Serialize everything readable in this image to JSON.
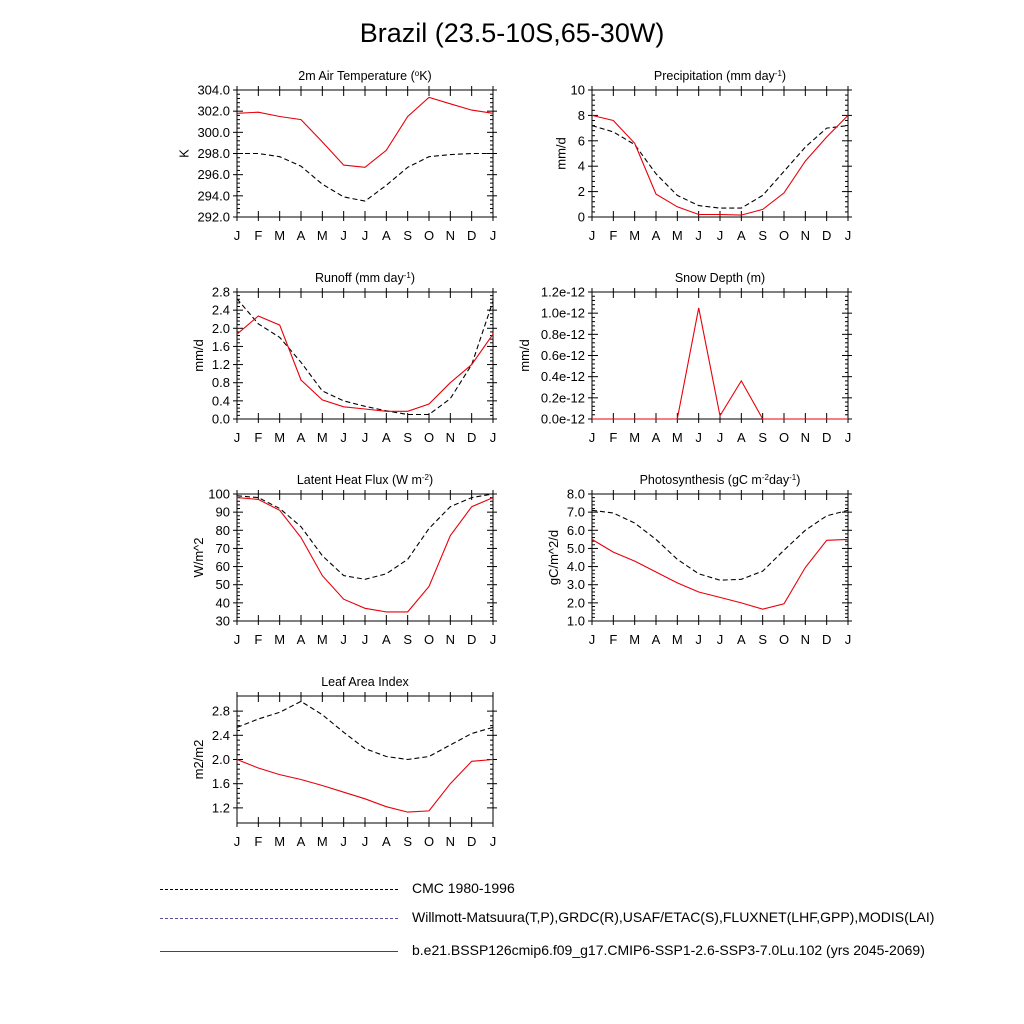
{
  "title": "Brazil (23.5-10S,65-30W)",
  "months": [
    "J",
    "F",
    "M",
    "A",
    "M",
    "J",
    "J",
    "A",
    "S",
    "O",
    "N",
    "D",
    "J"
  ],
  "colors": {
    "model": "#e8000b",
    "obs": "#000000",
    "legend_obs2": "#5a4ea0"
  },
  "legend": [
    {
      "label": "CMC 1980-1996",
      "style": "dashed",
      "color": "#000000"
    },
    {
      "label": "Willmott-Matsuura(T,P),GRDC(R),USAF/ETAC(S),FLUXNET(LHF,GPP),MODIS(LAI)",
      "style": "dashed",
      "color": "#5a4ea0"
    },
    {
      "label": "b.e21.BSSP126cmip6.f09_g17.CMIP6-SSP1-2.6-SSP3-7.0Lu.102 (yrs 2045-2069)",
      "style": "solid",
      "color": "#e8000b"
    }
  ],
  "chart_data": [
    {
      "type": "line",
      "title": "2m Air Temperature (",
      "title_sup": "o",
      "title_after": "K)",
      "ylabel": "K",
      "ylim": [
        292,
        304
      ],
      "yticks": [
        "292.0",
        "294.0",
        "296.0",
        "298.0",
        "300.0",
        "302.0",
        "304.0"
      ],
      "series": [
        {
          "role": "model",
          "values": [
            301.8,
            301.9,
            301.5,
            301.2,
            299.1,
            296.9,
            296.7,
            298.3,
            301.5,
            303.3,
            302.7,
            302.1,
            301.8
          ]
        },
        {
          "role": "obs",
          "values": [
            298.0,
            298.0,
            297.7,
            296.8,
            295.1,
            293.9,
            293.5,
            295.0,
            296.7,
            297.7,
            297.9,
            298.0,
            298.0
          ]
        }
      ]
    },
    {
      "type": "line",
      "title": "Precipitation (mm day",
      "title_sup": "-1",
      "title_after": ")",
      "ylabel": "mm/d",
      "ylim": [
        0,
        10
      ],
      "yticks": [
        "0",
        "2",
        "4",
        "6",
        "8",
        "10"
      ],
      "series": [
        {
          "role": "model",
          "values": [
            8.0,
            7.6,
            5.8,
            1.8,
            0.8,
            0.2,
            0.2,
            0.15,
            0.6,
            1.9,
            4.4,
            6.3,
            8.0
          ]
        },
        {
          "role": "obs",
          "values": [
            7.2,
            6.7,
            5.7,
            3.4,
            1.7,
            0.9,
            0.7,
            0.7,
            1.7,
            3.6,
            5.5,
            7.0,
            7.2
          ]
        }
      ]
    },
    {
      "type": "line",
      "title": "Runoff (mm day",
      "title_sup": "-1",
      "title_after": ")",
      "ylabel": "mm/d",
      "ylim": [
        0,
        2.8
      ],
      "yticks": [
        "0.0",
        "0.4",
        "0.8",
        "1.2",
        "1.6",
        "2.0",
        "2.4",
        "2.8"
      ],
      "series": [
        {
          "role": "model",
          "values": [
            1.87,
            2.27,
            2.07,
            0.86,
            0.42,
            0.27,
            0.22,
            0.17,
            0.17,
            0.33,
            0.8,
            1.2,
            1.87
          ]
        },
        {
          "role": "obs",
          "values": [
            2.65,
            2.1,
            1.8,
            1.25,
            0.62,
            0.4,
            0.28,
            0.18,
            0.1,
            0.1,
            0.45,
            1.2,
            2.6
          ]
        }
      ]
    },
    {
      "type": "line",
      "title": "Snow Depth (m)",
      "title_sup": "",
      "title_after": "",
      "ylabel": "mm/d",
      "ylim": [
        0,
        1.2
      ],
      "yticks": [
        "0.0e-12",
        "0.2e-12",
        "0.4e-12",
        "0.6e-12",
        "0.8e-12",
        "1.0e-12",
        "1.2e-12"
      ],
      "series": [
        {
          "role": "model",
          "values": [
            0,
            0,
            0,
            0,
            0,
            1.05,
            0.03,
            0.36,
            0,
            0,
            0,
            0,
            0
          ]
        },
        {
          "role": "obs",
          "values": [
            0,
            0,
            0,
            0,
            0,
            0,
            0,
            0,
            0,
            0,
            0,
            0,
            0
          ]
        }
      ]
    },
    {
      "type": "line",
      "title": "Latent Heat Flux (W m",
      "title_sup": "-2",
      "title_after": ")",
      "ylabel": "W/m^2",
      "ylim": [
        30,
        100
      ],
      "yticks": [
        "30",
        "40",
        "50",
        "60",
        "70",
        "80",
        "90",
        "100"
      ],
      "series": [
        {
          "role": "model",
          "values": [
            98,
            97,
            91,
            76,
            55,
            42,
            37,
            35,
            35,
            49,
            77,
            93,
            98
          ]
        },
        {
          "role": "obs",
          "values": [
            99,
            98,
            92,
            82,
            66,
            55,
            53,
            56,
            64,
            81,
            93,
            98,
            100
          ]
        }
      ]
    },
    {
      "type": "line",
      "title": "Photosynthesis (gC m",
      "title_sup": "-2",
      "title_after": "day",
      "title_sup2": "-1",
      "title_after2": ")",
      "ylabel": "gC/m^2/d",
      "ylim": [
        1,
        8
      ],
      "yticks": [
        "1.0",
        "2.0",
        "3.0",
        "4.0",
        "5.0",
        "6.0",
        "7.0",
        "8.0"
      ],
      "series": [
        {
          "role": "model",
          "values": [
            5.5,
            4.8,
            4.3,
            3.7,
            3.1,
            2.6,
            2.3,
            2.0,
            1.65,
            1.95,
            3.95,
            5.45,
            5.5
          ]
        },
        {
          "role": "obs",
          "values": [
            7.1,
            6.95,
            6.4,
            5.5,
            4.4,
            3.6,
            3.25,
            3.3,
            3.75,
            4.9,
            6.0,
            6.8,
            7.1
          ]
        }
      ]
    },
    {
      "type": "line",
      "title": "Leaf Area Index",
      "title_sup": "",
      "title_after": "",
      "ylabel": "m2/m2",
      "ylim": [
        0.95,
        3.05
      ],
      "yticks": [
        "1.2",
        "1.6",
        "2.0",
        "2.4",
        "2.8"
      ],
      "ytick_values": [
        1.2,
        1.6,
        2.0,
        2.4,
        2.8
      ],
      "series": [
        {
          "role": "model",
          "values": [
            2.0,
            1.86,
            1.75,
            1.67,
            1.57,
            1.46,
            1.35,
            1.22,
            1.13,
            1.15,
            1.6,
            1.97,
            2.0
          ]
        },
        {
          "role": "obs",
          "values": [
            2.53,
            2.67,
            2.78,
            2.96,
            2.74,
            2.45,
            2.18,
            2.05,
            2.0,
            2.05,
            2.24,
            2.43,
            2.53
          ]
        }
      ]
    }
  ]
}
